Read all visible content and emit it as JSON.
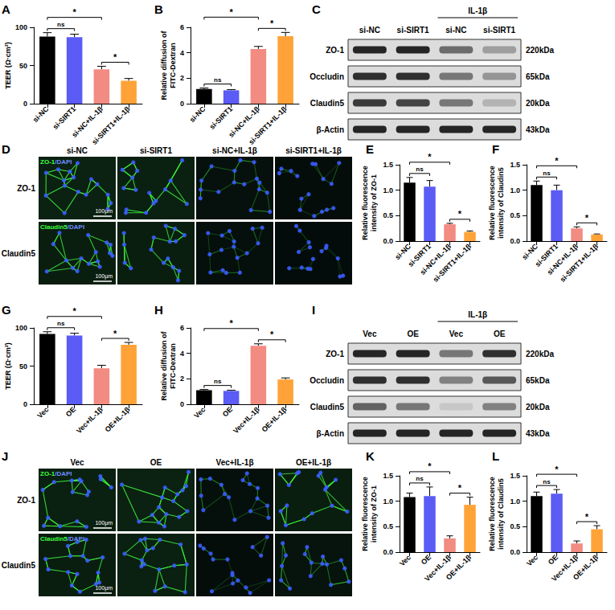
{
  "chart_data": [
    {
      "panel": "A",
      "type": "bar",
      "ylabel": "TEER (Ω·cm²)",
      "categories": [
        "si-NC",
        "si-SIRT1",
        "si-NC+IL-1β",
        "si-SIRT1+IL-1β"
      ],
      "values": [
        88,
        87,
        45,
        30
      ],
      "errors": [
        5,
        4,
        4,
        3
      ],
      "colors": [
        "#000000",
        "#5b5bf6",
        "#f28b82",
        "#ffa338"
      ],
      "ylim": [
        0,
        100
      ],
      "yticks": [
        0,
        50,
        100
      ],
      "grid": false,
      "significance": [
        {
          "from": 0,
          "to": 1,
          "label": "ns"
        },
        {
          "from": 2,
          "to": 3,
          "label": "*"
        },
        {
          "from": 0,
          "to": 2,
          "label": "*"
        }
      ]
    },
    {
      "panel": "B",
      "type": "bar",
      "ylabel": "Relative diffusion of\nFITC-Dextran",
      "categories": [
        "si-NC",
        "si-SIRT1",
        "si-NC+IL-1β",
        "si-SIRT1+IL-1β"
      ],
      "values": [
        1.15,
        1.05,
        4.3,
        5.3
      ],
      "errors": [
        0.08,
        0.06,
        0.2,
        0.3
      ],
      "colors": [
        "#000000",
        "#5b5bf6",
        "#f28b82",
        "#ffa338"
      ],
      "ylim": [
        0,
        6
      ],
      "yticks": [
        0,
        2,
        4,
        6
      ],
      "grid": false,
      "significance": [
        {
          "from": 0,
          "to": 1,
          "label": "ns"
        },
        {
          "from": 2,
          "to": 3,
          "label": "*"
        },
        {
          "from": 0,
          "to": 2,
          "label": "*"
        }
      ]
    },
    {
      "panel": "E",
      "type": "bar",
      "ylabel": "Relative fluorescence\nintensity of ZO-1",
      "categories": [
        "si-NC",
        "si-SIRT1",
        "si-NC+IL-1β",
        "si-SIRT1+IL-1β"
      ],
      "values": [
        1.15,
        1.07,
        0.33,
        0.18
      ],
      "errors": [
        0.1,
        0.12,
        0.02,
        0.02
      ],
      "colors": [
        "#000000",
        "#5b5bf6",
        "#f28b82",
        "#ffa338"
      ],
      "ylim": [
        0,
        1.5
      ],
      "yticks": [
        {
          "value": 0,
          "label": "0.0"
        },
        0.5,
        {
          "value": 1,
          "label": "1.0"
        },
        1.5
      ],
      "grid": false,
      "significance": [
        {
          "from": 0,
          "to": 1,
          "label": "ns"
        },
        {
          "from": 2,
          "to": 3,
          "label": "*"
        },
        {
          "from": 0,
          "to": 2,
          "label": "*"
        }
      ]
    },
    {
      "panel": "F",
      "type": "bar",
      "ylabel": "Relative fluorescence\nintensity of Claudin5",
      "categories": [
        "si-NC",
        "si-SIRT1",
        "si-NC+IL-1β",
        "si-SIRT1+IL-1β"
      ],
      "values": [
        1.1,
        1.0,
        0.25,
        0.13
      ],
      "errors": [
        0.08,
        0.1,
        0.03,
        0.01
      ],
      "colors": [
        "#000000",
        "#5b5bf6",
        "#f28b82",
        "#ffa338"
      ],
      "ylim": [
        0,
        1.5
      ],
      "yticks": [
        {
          "value": 0,
          "label": "0.0"
        },
        0.5,
        {
          "value": 1,
          "label": "1.0"
        },
        1.5
      ],
      "grid": false,
      "significance": [
        {
          "from": 0,
          "to": 1,
          "label": "ns"
        },
        {
          "from": 2,
          "to": 3,
          "label": "*"
        },
        {
          "from": 0,
          "to": 2,
          "label": "*"
        }
      ]
    },
    {
      "panel": "G",
      "type": "bar",
      "ylabel": "TEER (Ω·cm²)",
      "categories": [
        "Vec",
        "OE",
        "Vec+IL-1β",
        "OE+IL-1β"
      ],
      "values": [
        92,
        90,
        47,
        78
      ],
      "errors": [
        3,
        3,
        4,
        3
      ],
      "colors": [
        "#000000",
        "#5b5bf6",
        "#f28b82",
        "#ffa338"
      ],
      "ylim": [
        0,
        100
      ],
      "yticks": [
        0,
        50,
        100
      ],
      "grid": false,
      "significance": [
        {
          "from": 0,
          "to": 1,
          "label": "ns"
        },
        {
          "from": 2,
          "to": 3,
          "label": "*"
        },
        {
          "from": 0,
          "to": 2,
          "label": "*"
        }
      ]
    },
    {
      "panel": "H",
      "type": "bar",
      "ylabel": "Relative diffusion of\nFITC-Dextran",
      "categories": [
        "Vec",
        "OE",
        "Vec+IL-1β",
        "OE+IL-1β"
      ],
      "values": [
        1.1,
        1.05,
        4.6,
        1.95
      ],
      "errors": [
        0.06,
        0.05,
        0.15,
        0.12
      ],
      "colors": [
        "#000000",
        "#5b5bf6",
        "#f28b82",
        "#ffa338"
      ],
      "ylim": [
        0,
        6
      ],
      "yticks": [
        0,
        2,
        4,
        6
      ],
      "grid": false,
      "significance": [
        {
          "from": 0,
          "to": 1,
          "label": "ns"
        },
        {
          "from": 2,
          "to": 3,
          "label": "*"
        },
        {
          "from": 0,
          "to": 2,
          "label": "*"
        }
      ]
    },
    {
      "panel": "K",
      "type": "bar",
      "ylabel": "Relative fluorescence\nintensity of ZO-1",
      "categories": [
        "Vec",
        "OE",
        "Vec+IL-1β",
        "OE+IL-1β"
      ],
      "values": [
        1.08,
        1.1,
        0.27,
        0.93
      ],
      "errors": [
        0.08,
        0.18,
        0.05,
        0.15
      ],
      "colors": [
        "#000000",
        "#5b5bf6",
        "#f28b82",
        "#ffa338"
      ],
      "ylim": [
        0,
        1.5
      ],
      "yticks": [
        {
          "value": 0,
          "label": "0.0"
        },
        0.5,
        {
          "value": 1,
          "label": "1.0"
        },
        1.5
      ],
      "grid": false,
      "significance": [
        {
          "from": 0,
          "to": 1,
          "label": "ns"
        },
        {
          "from": 2,
          "to": 3,
          "label": "*"
        },
        {
          "from": 0,
          "to": 2,
          "label": "*"
        }
      ]
    },
    {
      "panel": "L",
      "type": "bar",
      "ylabel": "Relative fluorescence\nintensity of Claudin5",
      "categories": [
        "Vec",
        "OE",
        "Vec+IL-1β",
        "OE+IL-1β"
      ],
      "values": [
        1.1,
        1.15,
        0.17,
        0.45
      ],
      "errors": [
        0.08,
        0.08,
        0.05,
        0.07
      ],
      "colors": [
        "#000000",
        "#5b5bf6",
        "#f28b82",
        "#ffa338"
      ],
      "ylim": [
        0,
        1.5
      ],
      "yticks": [
        {
          "value": 0,
          "label": "0.0"
        },
        0.5,
        {
          "value": 1,
          "label": "1.0"
        },
        1.5
      ],
      "grid": false,
      "significance": [
        {
          "from": 0,
          "to": 1,
          "label": "ns"
        },
        {
          "from": 2,
          "to": 3,
          "label": "*"
        },
        {
          "from": 0,
          "to": 2,
          "label": "*"
        }
      ]
    }
  ],
  "blots": [
    {
      "panel": "C",
      "group_label": "IL-1β",
      "group_columns": [
        2,
        3
      ],
      "columns": [
        "si-NC",
        "si-SIRT1",
        "si-NC",
        "si-SIRT1"
      ],
      "rows": [
        {
          "name": "ZO-1",
          "kda": "220kDa",
          "intensity": [
            0.9,
            0.9,
            0.55,
            0.3
          ]
        },
        {
          "name": "Occludin",
          "kda": "65kDa",
          "intensity": [
            0.85,
            0.85,
            0.5,
            0.35
          ]
        },
        {
          "name": "Claudin5",
          "kda": "20kDa",
          "intensity": [
            0.8,
            0.75,
            0.5,
            0.2
          ]
        },
        {
          "name": "β-Actin",
          "kda": "43kDa",
          "intensity": [
            0.9,
            0.9,
            0.9,
            0.9
          ]
        }
      ]
    },
    {
      "panel": "I",
      "group_label": "IL-1β",
      "group_columns": [
        2,
        3
      ],
      "columns": [
        "Vec",
        "OE",
        "Vec",
        "OE"
      ],
      "rows": [
        {
          "name": "ZO-1",
          "kda": "220kDa",
          "intensity": [
            0.9,
            0.9,
            0.5,
            0.85
          ]
        },
        {
          "name": "Occludin",
          "kda": "65kDa",
          "intensity": [
            0.85,
            0.85,
            0.45,
            0.65
          ]
        },
        {
          "name": "Claudin5",
          "kda": "20kDa",
          "intensity": [
            0.6,
            0.5,
            0.1,
            0.45
          ]
        },
        {
          "name": "β-Actin",
          "kda": "43kDa",
          "intensity": [
            0.9,
            0.9,
            0.9,
            0.9
          ]
        }
      ]
    }
  ],
  "images": [
    {
      "panel": "D",
      "scale_bar": "100μm",
      "columns": [
        "si-NC",
        "si-SIRT1",
        "si-NC+IL-1β",
        "si-SIRT1+IL-1β"
      ],
      "rows": [
        {
          "name": "ZO-1",
          "label": "ZO-1/DAPI",
          "signal": [
            1.0,
            0.95,
            0.35,
            0.2
          ]
        },
        {
          "name": "Claudin5",
          "label": "Claudin5/DAPI",
          "signal": [
            0.9,
            0.85,
            0.25,
            0.15
          ]
        }
      ]
    },
    {
      "panel": "J",
      "scale_bar": "100μm",
      "columns": [
        "Vec",
        "OE",
        "Vec+IL-1β",
        "OE+IL-1β"
      ],
      "rows": [
        {
          "name": "ZO-1",
          "label": "ZO-1/DAPI",
          "signal": [
            0.95,
            1.0,
            0.3,
            0.85
          ]
        },
        {
          "name": "Claudin5",
          "label": "Claudin5/DAPI",
          "signal": [
            0.9,
            0.95,
            0.2,
            0.45
          ]
        }
      ]
    }
  ]
}
